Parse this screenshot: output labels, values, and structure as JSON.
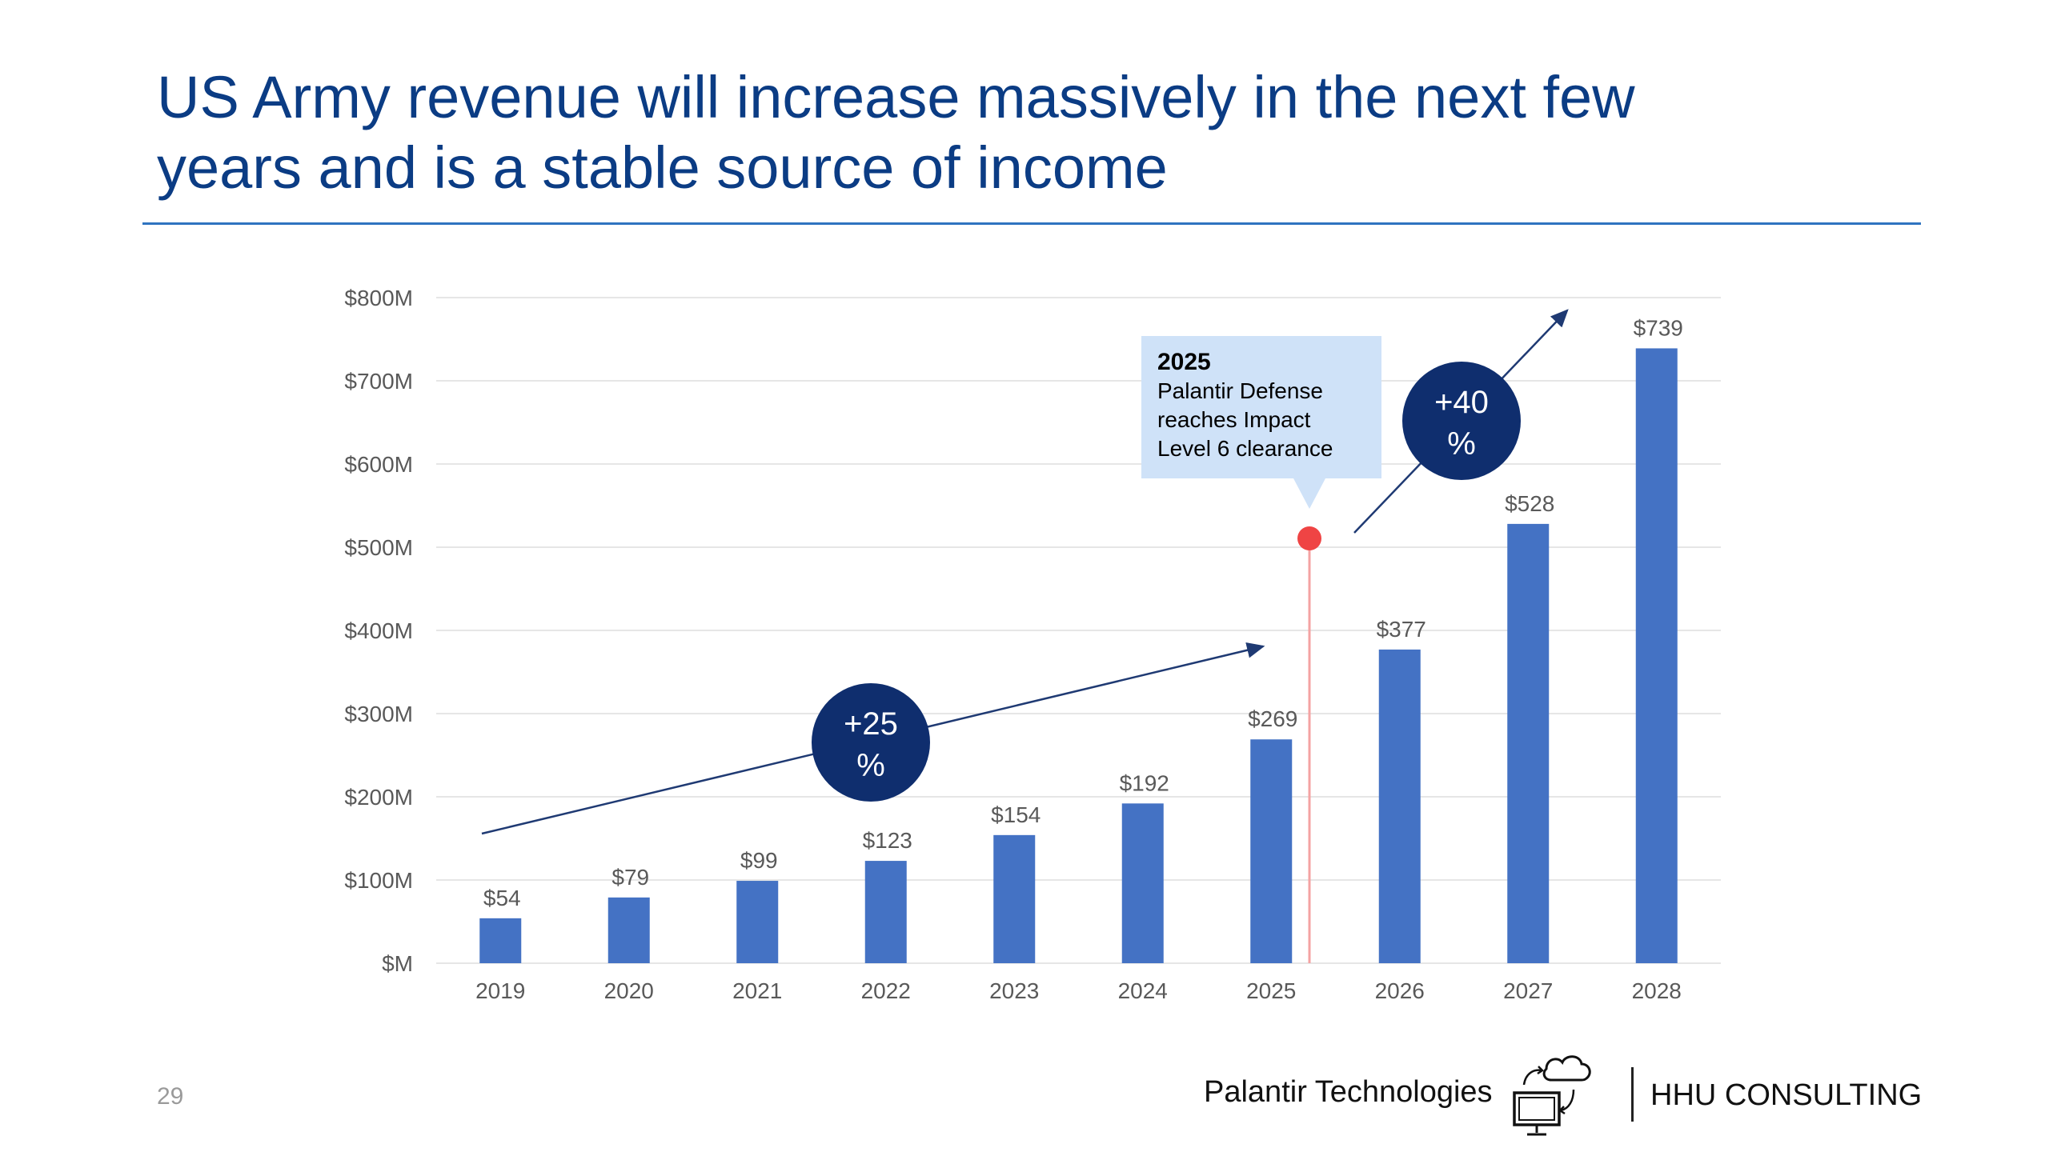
{
  "slide": {
    "title_line1": "US Army revenue will increase massively in the next few",
    "title_line2": "years and is a stable source of income",
    "page_number": "29",
    "footer_company": "Palantir Technologies",
    "footer_brand": "HHU CONSULTING",
    "logo_icon": "cloud-computer-sync-icon"
  },
  "colors": {
    "title": "#0b3c84",
    "rule": "#2f74c0",
    "bar": "#4472c4",
    "badge": "#0f2e6e",
    "marker": "#ef4444",
    "callout": "#cfe2f8",
    "gridline": "#e6e6e6",
    "axis_text": "#595959"
  },
  "chart_data": {
    "type": "bar",
    "categories": [
      "2019",
      "2020",
      "2021",
      "2022",
      "2023",
      "2024",
      "2025",
      "2026",
      "2027",
      "2028"
    ],
    "values": [
      54,
      79,
      99,
      123,
      154,
      192,
      269,
      377,
      528,
      739
    ],
    "data_labels": [
      "$54",
      "$79",
      "$99",
      "$123",
      "$154",
      "$192",
      "$269",
      "$377",
      "$528",
      "$739"
    ],
    "y_ticks": [
      0,
      100,
      200,
      300,
      400,
      500,
      600,
      700,
      800
    ],
    "y_tick_labels": [
      "$M",
      "$100M",
      "$200M",
      "$300M",
      "$400M",
      "$500M",
      "$600M",
      "$700M",
      "$800M"
    ],
    "ylim": [
      0,
      800
    ],
    "grid": true,
    "annotations": {
      "growth_badges": [
        {
          "text_line1": "+25",
          "text_line2": "%"
        },
        {
          "text_line1": "+40",
          "text_line2": "%"
        }
      ],
      "milestone": {
        "year_label": "2025",
        "text_lines": [
          "Palantir Defense",
          "reaches Impact",
          "Level 6 clearance"
        ]
      }
    }
  }
}
